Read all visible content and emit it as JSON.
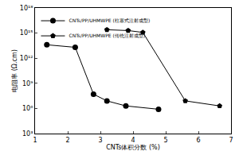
{
  "chart_data": {
    "type": "line",
    "x_label": "CNTs体积分数 (%)",
    "y_label": "电阻率 (Ω.cm)",
    "log": "y",
    "grid": false,
    "legend": "upper left",
    "xlim": [
      1,
      7
    ],
    "xticks": [
      1,
      2,
      3,
      4,
      5,
      6,
      7
    ],
    "ylim": [
      1000,
      1000000000000000000
    ],
    "yticks": [
      {
        "value": 1000,
        "label": "10³"
      },
      {
        "value": 1000000,
        "label": "10⁶"
      },
      {
        "value": 1000000000,
        "label": "10⁹"
      },
      {
        "value": 1000000000000,
        "label": "10¹²"
      },
      {
        "value": 1000000000000000,
        "label": "10¹⁵"
      },
      {
        "value": 1000000000000000000,
        "label": "10¹⁸"
      }
    ],
    "series": [
      {
        "name": "CNTs/PP/UHMWPE (柱塞式注射成型)",
        "color": "#000000",
        "marker": "circle",
        "x": [
          1.36,
          2.23,
          2.79,
          3.2,
          3.78,
          4.78
        ],
        "values": [
          40000000000000,
          20000000000000,
          50000000,
          8000000,
          2000000,
          800000
        ]
      },
      {
        "name": "CNTs/PP/UHMWPE (传统注射成型)",
        "color": "#000000",
        "marker": "pentagon",
        "x": [
          3.2,
          3.85,
          4.3,
          5.6,
          6.65
        ],
        "values": [
          2500000000000000,
          2000000000000000,
          1200000000000000,
          8000000,
          2000000
        ]
      }
    ]
  }
}
